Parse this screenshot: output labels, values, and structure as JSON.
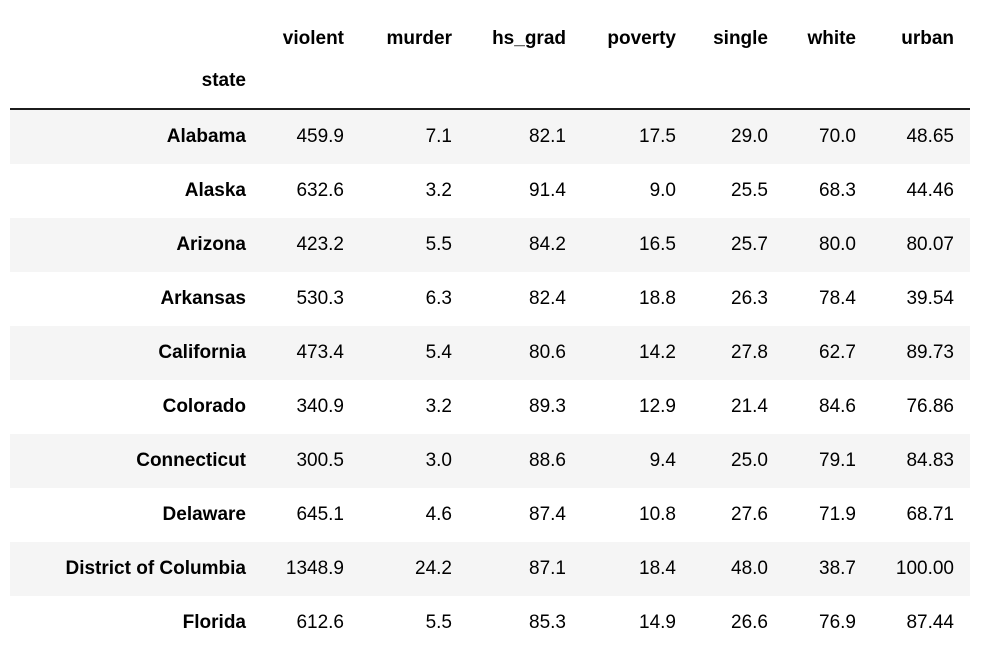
{
  "colors": {
    "background": "#ffffff",
    "row_stripe": "#f5f5f5",
    "header_border": "#1c1c1c",
    "text": "#000000"
  },
  "chart_data": {
    "type": "table",
    "title": "",
    "index_name": "state",
    "columns": [
      "violent",
      "murder",
      "hs_grad",
      "poverty",
      "single",
      "white",
      "urban"
    ],
    "rows": [
      {
        "state": "Alabama",
        "values": [
          "459.9",
          "7.1",
          "82.1",
          "17.5",
          "29.0",
          "70.0",
          "48.65"
        ]
      },
      {
        "state": "Alaska",
        "values": [
          "632.6",
          "3.2",
          "91.4",
          "9.0",
          "25.5",
          "68.3",
          "44.46"
        ]
      },
      {
        "state": "Arizona",
        "values": [
          "423.2",
          "5.5",
          "84.2",
          "16.5",
          "25.7",
          "80.0",
          "80.07"
        ]
      },
      {
        "state": "Arkansas",
        "values": [
          "530.3",
          "6.3",
          "82.4",
          "18.8",
          "26.3",
          "78.4",
          "39.54"
        ]
      },
      {
        "state": "California",
        "values": [
          "473.4",
          "5.4",
          "80.6",
          "14.2",
          "27.8",
          "62.7",
          "89.73"
        ]
      },
      {
        "state": "Colorado",
        "values": [
          "340.9",
          "3.2",
          "89.3",
          "12.9",
          "21.4",
          "84.6",
          "76.86"
        ]
      },
      {
        "state": "Connecticut",
        "values": [
          "300.5",
          "3.0",
          "88.6",
          "9.4",
          "25.0",
          "79.1",
          "84.83"
        ]
      },
      {
        "state": "Delaware",
        "values": [
          "645.1",
          "4.6",
          "87.4",
          "10.8",
          "27.6",
          "71.9",
          "68.71"
        ]
      },
      {
        "state": "District of Columbia",
        "values": [
          "1348.9",
          "24.2",
          "87.1",
          "18.4",
          "48.0",
          "38.7",
          "100.00"
        ]
      },
      {
        "state": "Florida",
        "values": [
          "612.6",
          "5.5",
          "85.3",
          "14.9",
          "26.6",
          "76.9",
          "87.44"
        ]
      }
    ]
  }
}
